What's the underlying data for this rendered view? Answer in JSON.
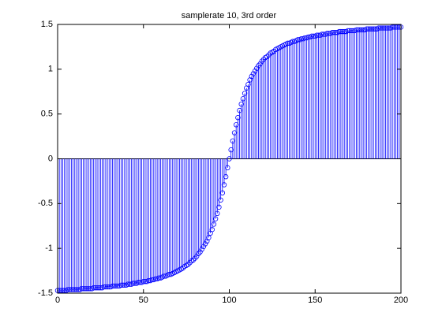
{
  "chart_data": {
    "type": "stem",
    "title": "samplerate 10, 3rd order",
    "color": "#0000ff",
    "xlim": [
      0,
      200
    ],
    "xticks": [
      0,
      50,
      100,
      150,
      200
    ],
    "ylim": [
      -1.5,
      1.5
    ],
    "yticks": [
      -1.5,
      -1,
      -0.5,
      0,
      0.5,
      1,
      1.5
    ],
    "x": [
      0,
      1,
      2,
      3,
      4,
      5,
      6,
      7,
      8,
      9,
      10,
      11,
      12,
      13,
      14,
      15,
      16,
      17,
      18,
      19,
      20,
      21,
      22,
      23,
      24,
      25,
      26,
      27,
      28,
      29,
      30,
      31,
      32,
      33,
      34,
      35,
      36,
      37,
      38,
      39,
      40,
      41,
      42,
      43,
      44,
      45,
      46,
      47,
      48,
      49,
      50,
      51,
      52,
      53,
      54,
      55,
      56,
      57,
      58,
      59,
      60,
      61,
      62,
      63,
      64,
      65,
      66,
      67,
      68,
      69,
      70,
      71,
      72,
      73,
      74,
      75,
      76,
      77,
      78,
      79,
      80,
      81,
      82,
      83,
      84,
      85,
      86,
      87,
      88,
      89,
      90,
      91,
      92,
      93,
      94,
      95,
      96,
      97,
      98,
      99,
      100,
      101,
      102,
      103,
      104,
      105,
      106,
      107,
      108,
      109,
      110,
      111,
      112,
      113,
      114,
      115,
      116,
      117,
      118,
      119,
      120,
      121,
      122,
      123,
      124,
      125,
      126,
      127,
      128,
      129,
      130,
      131,
      132,
      133,
      134,
      135,
      136,
      137,
      138,
      139,
      140,
      141,
      142,
      143,
      144,
      145,
      146,
      147,
      148,
      149,
      150,
      151,
      152,
      153,
      154,
      155,
      156,
      157,
      158,
      159,
      160,
      161,
      162,
      163,
      164,
      165,
      166,
      167,
      168,
      169,
      170,
      171,
      172,
      173,
      174,
      175,
      176,
      177,
      178,
      179,
      180,
      181,
      182,
      183,
      184,
      185,
      186,
      187,
      188,
      189,
      190,
      191,
      192,
      193,
      194,
      195,
      196,
      197,
      198,
      199,
      200
    ],
    "values": [
      -1.47,
      -1.47,
      -1.47,
      -1.47,
      -1.47,
      -1.47,
      -1.46,
      -1.46,
      -1.46,
      -1.46,
      -1.46,
      -1.46,
      -1.46,
      -1.46,
      -1.45,
      -1.45,
      -1.45,
      -1.45,
      -1.45,
      -1.45,
      -1.45,
      -1.44,
      -1.44,
      -1.44,
      -1.44,
      -1.44,
      -1.44,
      -1.43,
      -1.43,
      -1.43,
      -1.43,
      -1.43,
      -1.42,
      -1.42,
      -1.42,
      -1.42,
      -1.42,
      -1.41,
      -1.41,
      -1.41,
      -1.41,
      -1.4,
      -1.4,
      -1.4,
      -1.39,
      -1.39,
      -1.39,
      -1.38,
      -1.38,
      -1.38,
      -1.37,
      -1.37,
      -1.37,
      -1.36,
      -1.36,
      -1.35,
      -1.35,
      -1.34,
      -1.34,
      -1.33,
      -1.33,
      -1.32,
      -1.31,
      -1.31,
      -1.3,
      -1.29,
      -1.29,
      -1.28,
      -1.27,
      -1.26,
      -1.25,
      -1.24,
      -1.23,
      -1.22,
      -1.2,
      -1.19,
      -1.18,
      -1.16,
      -1.14,
      -1.13,
      -1.11,
      -1.09,
      -1.06,
      -1.04,
      -1.01,
      -0.98,
      -0.95,
      -0.92,
      -0.88,
      -0.83,
      -0.79,
      -0.73,
      -0.67,
      -0.61,
      -0.54,
      -0.46,
      -0.38,
      -0.29,
      -0.2,
      -0.1,
      0,
      0.1,
      0.2,
      0.29,
      0.38,
      0.46,
      0.54,
      0.61,
      0.67,
      0.73,
      0.79,
      0.83,
      0.88,
      0.92,
      0.95,
      0.98,
      1.01,
      1.04,
      1.06,
      1.09,
      1.11,
      1.13,
      1.14,
      1.16,
      1.18,
      1.19,
      1.2,
      1.22,
      1.23,
      1.24,
      1.25,
      1.26,
      1.27,
      1.28,
      1.29,
      1.29,
      1.3,
      1.31,
      1.31,
      1.32,
      1.33,
      1.33,
      1.34,
      1.34,
      1.35,
      1.35,
      1.36,
      1.36,
      1.37,
      1.37,
      1.37,
      1.38,
      1.38,
      1.38,
      1.39,
      1.39,
      1.39,
      1.4,
      1.4,
      1.4,
      1.41,
      1.41,
      1.41,
      1.41,
      1.42,
      1.42,
      1.42,
      1.42,
      1.42,
      1.43,
      1.43,
      1.43,
      1.43,
      1.43,
      1.44,
      1.44,
      1.44,
      1.44,
      1.44,
      1.44,
      1.45,
      1.45,
      1.45,
      1.45,
      1.45,
      1.45,
      1.45,
      1.46,
      1.46,
      1.46,
      1.46,
      1.46,
      1.46,
      1.46,
      1.46,
      1.47,
      1.47,
      1.47,
      1.47,
      1.47,
      1.47
    ]
  }
}
